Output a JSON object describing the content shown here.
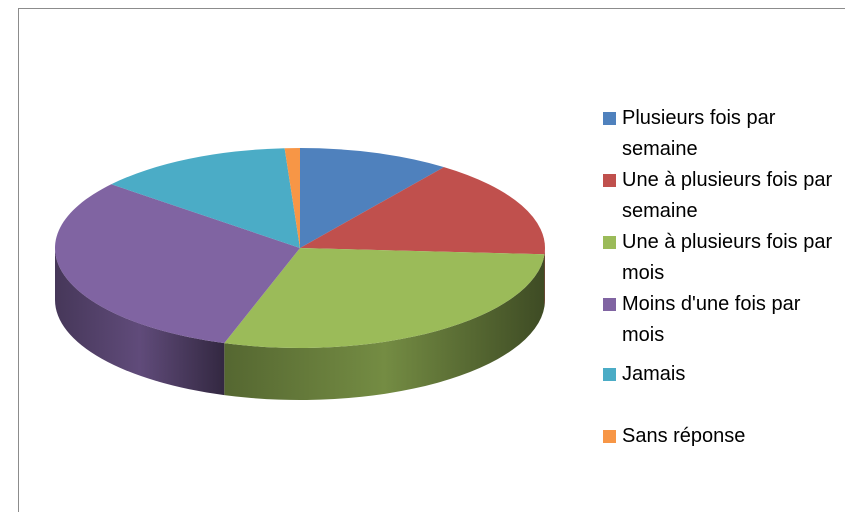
{
  "chart_data": {
    "type": "pie",
    "categories": [
      "Plusieurs fois par semaine",
      "Une à plusieurs fois par semaine",
      "Une à plusieurs fois par mois",
      "Moins d'une fois par mois",
      "Jamais",
      "Sans réponse"
    ],
    "values": [
      10,
      16,
      29,
      31,
      13,
      1
    ],
    "colors": [
      "#4f81bd",
      "#c0504d",
      "#9bbb59",
      "#8064a2",
      "#4bacc6",
      "#f79646"
    ],
    "legend": "right"
  }
}
